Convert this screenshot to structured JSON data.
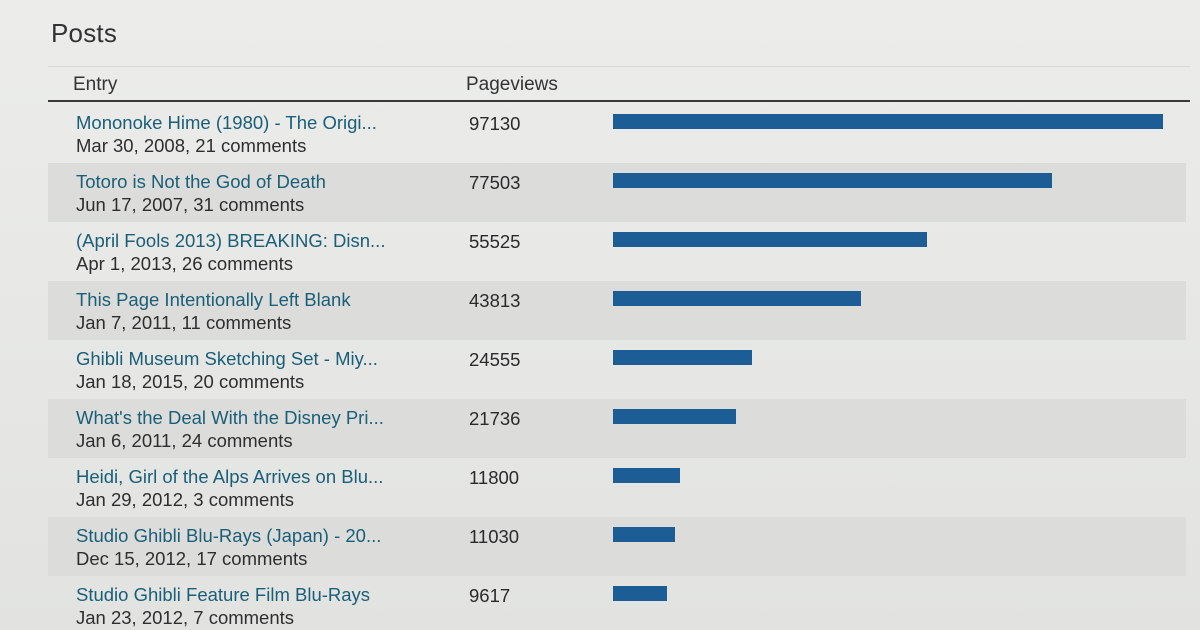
{
  "header": {
    "title": "Posts"
  },
  "table": {
    "columns": {
      "entry": "Entry",
      "pageviews": "Pageviews"
    },
    "bar_color": "#1d5d96",
    "link_color": "#1a5e78",
    "max_value": 97130,
    "rows": [
      {
        "title": "Mononoke Hime (1980) - The Origi...",
        "meta": "Mar 30, 2008, 21 comments",
        "pageviews": "97130",
        "value": 97130
      },
      {
        "title": "Totoro is Not the God of Death",
        "meta": "Jun 17, 2007, 31 comments",
        "pageviews": "77503",
        "value": 77503
      },
      {
        "title": "(April Fools 2013) BREAKING: Disn...",
        "meta": "Apr 1, 2013, 26 comments",
        "pageviews": "55525",
        "value": 55525
      },
      {
        "title": "This Page Intentionally Left Blank",
        "meta": "Jan 7, 2011, 11 comments",
        "pageviews": "43813",
        "value": 43813
      },
      {
        "title": "Ghibli Museum Sketching Set - Miy...",
        "meta": "Jan 18, 2015, 20 comments",
        "pageviews": "24555",
        "value": 24555
      },
      {
        "title": "What's the Deal With the Disney Pri...",
        "meta": "Jan 6, 2011, 24 comments",
        "pageviews": "21736",
        "value": 21736
      },
      {
        "title": "Heidi, Girl of the Alps Arrives on Blu...",
        "meta": "Jan 29, 2012, 3 comments",
        "pageviews": "11800",
        "value": 11800
      },
      {
        "title": "Studio Ghibli Blu-Rays (Japan) - 20...",
        "meta": "Dec 15, 2012, 17 comments",
        "pageviews": "11030",
        "value": 11030
      },
      {
        "title": "Studio Ghibli Feature Film Blu-Rays",
        "meta": "Jan 23, 2012, 7 comments",
        "pageviews": "9617",
        "value": 9617
      }
    ]
  }
}
